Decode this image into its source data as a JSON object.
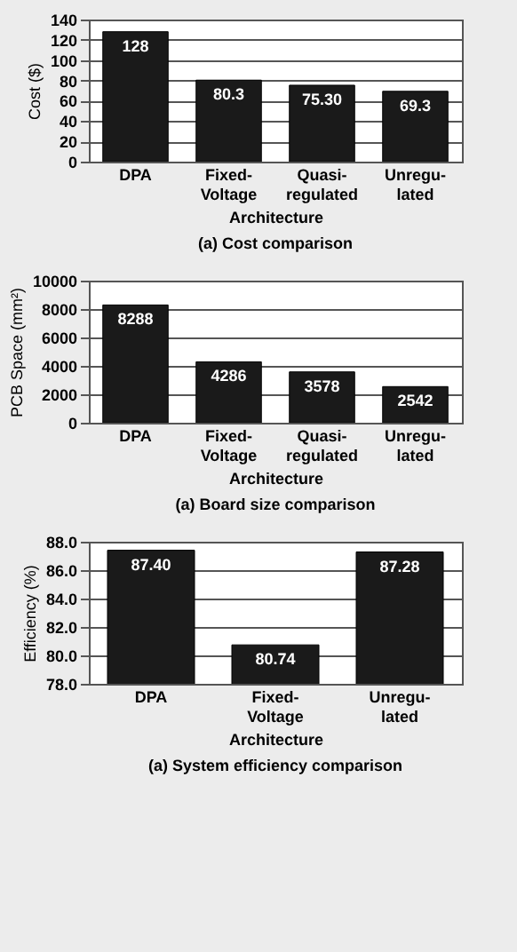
{
  "chart_data": [
    {
      "type": "bar",
      "title": "(a) Cost comparison",
      "xlabel": "Architecture",
      "ylabel": "Cost ($)",
      "categories": [
        "DPA",
        "Fixed-\nVoltage",
        "Quasi-\nregulated",
        "Unregu-\nlated"
      ],
      "values": [
        128,
        80.3,
        75.3,
        69.3
      ],
      "value_labels": [
        "128",
        "80.3",
        "75.30",
        "69.3"
      ],
      "color": "#1a1a1a",
      "ylim": [
        0,
        140
      ],
      "yticks": [
        0,
        20,
        40,
        60,
        80,
        100,
        120,
        140
      ],
      "grid": "y"
    },
    {
      "type": "bar",
      "title": "(a) Board size comparison",
      "xlabel": "Architecture",
      "ylabel": "PCB Space (mm²)",
      "categories": [
        "DPA",
        "Fixed-\nVoltage",
        "Quasi-\nregulated",
        "Unregu-\nlated"
      ],
      "values": [
        8288,
        4286,
        3578,
        2542
      ],
      "data_labels": true,
      "color": "#1a1a1a",
      "ylim": [
        0,
        10000
      ],
      "yticks": [
        0,
        2000,
        4000,
        6000,
        8000,
        10000
      ],
      "grid": "y"
    },
    {
      "type": "bar",
      "title": "(a) System efficiency comparison",
      "xlabel": "Architecture",
      "ylabel": "Efficiency (%)",
      "categories": [
        "DPA",
        "Fixed-\nVoltage",
        "Unregu-\nlated"
      ],
      "values": [
        87.4,
        80.74,
        87.28
      ],
      "value_labels": [
        "87.40",
        "80.74",
        "87.28"
      ],
      "color": "#1a1a1a",
      "ylim": [
        78,
        88
      ],
      "yticks": [
        {
          "value": 78,
          "label": "78.0"
        },
        {
          "value": 80,
          "label": "80.0"
        },
        {
          "value": 82,
          "label": "82.0"
        },
        {
          "value": 84,
          "label": "84.0"
        },
        {
          "value": 86,
          "label": "86.0"
        },
        {
          "value": 88,
          "label": "88.0"
        }
      ],
      "grid": "y"
    }
  ]
}
